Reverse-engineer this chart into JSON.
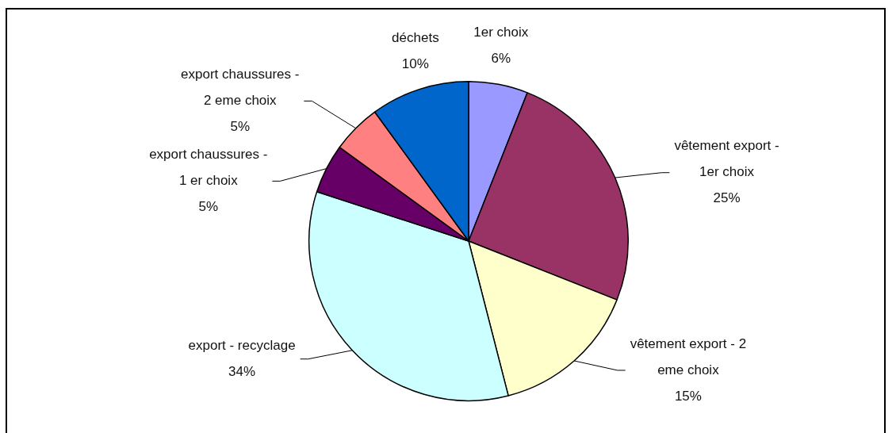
{
  "chart_data": {
    "type": "pie",
    "categories": [
      "1er choix",
      "vêtement export - 1er choix",
      "vêtement export - 2 eme choix",
      "export - recyclage",
      "export chaussures - 1 er choix",
      "export chaussures - 2 eme choix",
      "déchets"
    ],
    "values": [
      6,
      25,
      15,
      34,
      5,
      5,
      10
    ],
    "value_labels": [
      "6%",
      "25%",
      "15%",
      "34%",
      "5%",
      "5%",
      "10%"
    ],
    "colors": [
      "#9999ff",
      "#993366",
      "#ffffcc",
      "#ccffff",
      "#660066",
      "#ff8080",
      "#0066cc"
    ]
  }
}
